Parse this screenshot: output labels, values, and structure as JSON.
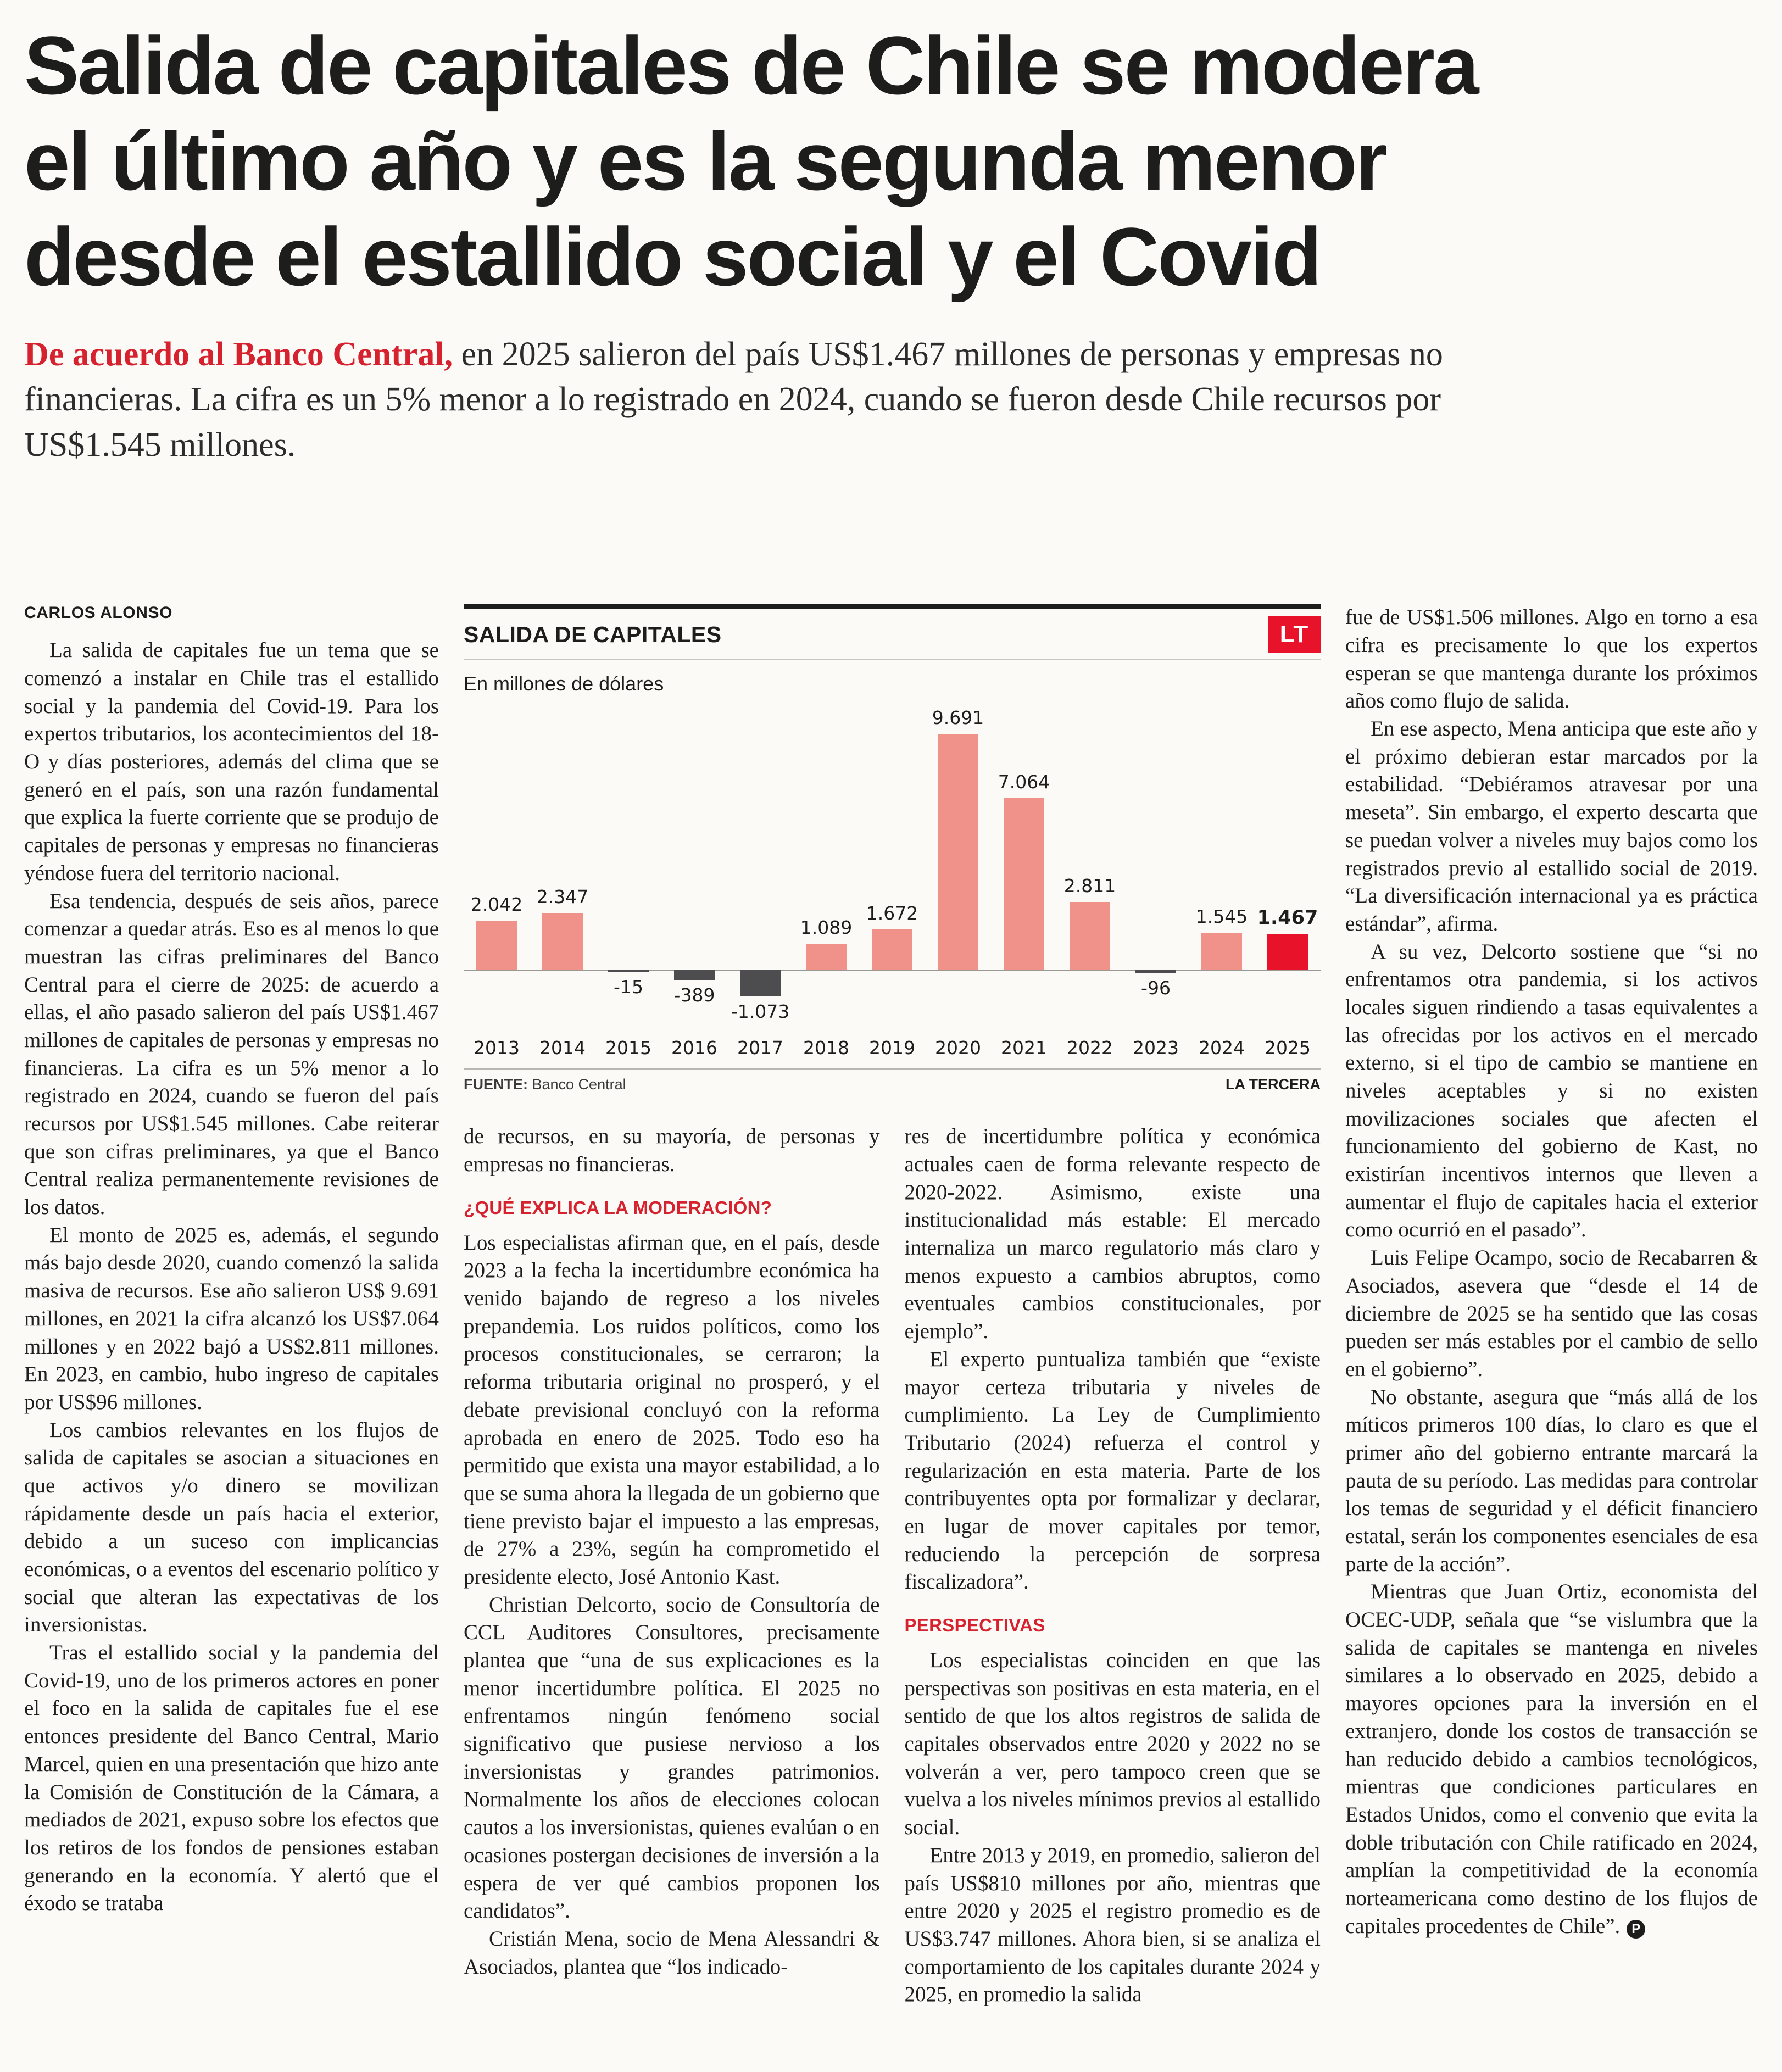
{
  "article": {
    "headline_lines": [
      "Salida de capitales de Chile se modera",
      "el último año y es la segunda menor",
      "desde el estallido social y el Covid"
    ],
    "lead": {
      "highlight": "De acuerdo al Banco Central,",
      "rest": " en 2025 salieron del país US$1.467 millones de personas y empresas no financieras. La cifra es un 5% menor a lo registrado en 2024, cuando se fueron desde Chile recursos por US$1.545 millones."
    },
    "byline": "CARLOS ALONSO",
    "col1": [
      "La salida de capitales fue un tema que se comenzó a instalar en Chile tras el estallido social y la pandemia del Covid-19. Para los expertos tributarios, los acontecimientos del 18-O y días posteriores, además del clima que se generó en el país, son una razón fundamental que explica la fuerte corriente que se produjo de capitales de personas y empresas no financieras yéndose fuera del territorio nacional.",
      "Esa tendencia, después de seis años, parece comenzar a quedar atrás. Eso es al menos lo que muestran las cifras preliminares del Banco Central para el cierre de 2025: de acuerdo a ellas, el año pasado salieron del país US$1.467 millones de capitales de personas y empresas no financieras. La cifra es un 5% menor a lo registrado en 2024, cuando se fueron del país recursos por US$1.545 millones. Cabe reiterar que son cifras preliminares, ya que el Banco Central realiza permanentemente revisiones de los datos.",
      "El monto de 2025 es, además, el segundo más bajo desde 2020, cuando comenzó la salida masiva de recursos. Ese año salieron US$ 9.691 millones, en 2021 la cifra alcanzó los US$7.064 millones y en 2022 bajó a US$2.811 millones. En 2023, en cambio, hubo ingreso de capitales por US$96 millones.",
      "Los cambios relevantes en los flujos de salida de capitales se asocian a situaciones en que activos y/o dinero se movilizan rápidamente desde un país hacia el exterior, debido a un suceso con implicancias económicas, o a eventos del escenario político y social que alteran las expectativas de los inversionistas.",
      "Tras el estallido social y la pandemia del Covid-19, uno de los primeros actores en poner el foco en la salida de capitales fue el ese entonces presidente del Banco Central, Mario Marcel, quien en una presentación que hizo ante la Comisión de Constitución de la Cámara, a mediados de 2021, expuso sobre los efectos que los retiros de los fondos de pensiones estaban generando en la economía. Y alertó que el éxodo se trataba"
    ],
    "col2_intro": [
      "de recursos, en su mayoría, de personas y empresas no financieras."
    ],
    "col2_heading": "¿QUÉ EXPLICA LA MODERACIÓN?",
    "col2_body": [
      "Los especialistas afirman que, en el país, desde 2023 a la fecha la incertidumbre económica ha venido bajando de regreso a los niveles prepandemia. Los ruidos políticos, como los procesos constitucionales, se cerraron; la reforma tributaria original no prosperó, y el debate previsional concluyó con la reforma aprobada en enero de 2025. Todo eso ha permitido que exista una mayor estabilidad, a lo que se suma ahora la llegada de un gobierno que tiene previsto bajar el impuesto a las empresas, de 27% a 23%, según ha comprometido el presidente electo, José Antonio Kast.",
      "Christian Delcorto, socio de Consultoría de CCL Auditores Consultores, precisamente plantea que “una de sus explicaciones es la menor incertidumbre política. El 2025 no enfrentamos ningún fenómeno social significativo que pusiese nervioso a los inversionistas y grandes patrimonios. Normalmente los años de elecciones colocan cautos a los inversionistas, quienes evalúan o en ocasiones postergan decisiones de inversión a la espera de ver qué cambios proponen los candidatos”.",
      "Cristián Mena, socio de Mena Alessandri & Asociados, plantea que “los indicado-"
    ],
    "col3_body_a": [
      "res de incertidumbre política y económica actuales caen de forma relevante respecto de 2020-2022. Asimismo, existe una institucionalidad más estable: El mercado internaliza un marco regulatorio más claro y menos expuesto a cambios abruptos, como eventuales cambios constitucionales, por ejemplo”.",
      "El experto puntualiza también que “existe mayor certeza tributaria y niveles de cumplimiento. La Ley de Cumplimiento Tributario (2024) refuerza el control y regularización en esta materia. Parte de los contribuyentes opta por formalizar y declarar, en lugar de mover capitales por temor, reduciendo la percepción de sorpresa fiscalizadora”."
    ],
    "col3_heading": "PERSPECTIVAS",
    "col3_body_b": [
      "Los especialistas coinciden en que las perspectivas son positivas en esta materia, en el sentido de que los altos registros de salida de capitales observados entre 2020 y 2022 no se volverán a ver, pero tampoco creen que se vuelva a los niveles mínimos previos al estallido social.",
      "Entre 2013 y 2019, en promedio, salieron del país US$810 millones por año, mientras que entre 2020 y 2025 el registro promedio es de US$3.747 millones. Ahora bien, si se analiza el comportamiento de los capitales durante 2024 y 2025, en promedio la salida"
    ],
    "col4_body": [
      "fue de US$1.506 millones. Algo en torno a esa cifra es precisamente lo que los expertos esperan se que mantenga durante los próximos años como flujo de salida.",
      "En ese aspecto, Mena anticipa que este año y el próximo debieran estar marcados por la estabilidad. “Debiéramos atravesar por una meseta”. Sin embargo, el experto descarta que se puedan volver a niveles muy bajos como los registrados previo al estallido social de 2019. “La diversificación internacional ya es práctica estándar”, afirma.",
      "A su vez, Delcorto sostiene que “si no enfrentamos otra pandemia, si los activos locales siguen rindiendo a tasas equivalentes a las ofrecidas por los activos en el mercado externo, si el tipo de cambio se mantiene en niveles aceptables y si no existen movilizaciones sociales que afecten el funcionamiento del gobierno de Kast, no existirían incentivos internos que lleven a aumentar el flujo de capitales hacia el exterior como ocurrió en el pasado”.",
      "Luis Felipe Ocampo, socio de Recabarren & Asociados, asevera que “desde el 14 de diciembre de 2025 se ha sentido que las cosas pueden ser más estables por el cambio de sello en el gobierno”.",
      "No obstante, asegura que “más allá de los míticos primeros 100 días, lo claro es que el primer año del gobierno entrante marcará la pauta de su período. Las medidas para controlar los temas de seguridad y el déficit financiero estatal, serán los componentes esenciales de esa parte de la acción”.",
      "Mientras que Juan Ortiz, economista del OCEC-UDP, señala que “se vislumbra que la salida de capitales se mantenga en niveles similares a lo observado en 2025, debido a mayores opciones para la inversión en el extranjero, donde los costos de transacción se han reducido debido a cambios tecnológicos, mientras que condiciones particulares en Estados Unidos, como el convenio que evita la doble tributación con Chile ratificado en 2024, amplían la competitividad de la economía norteamericana como destino de los flujos de capitales procedentes de Chile”."
    ],
    "end_mark": "P"
  },
  "chart": {
    "title": "SALIDA DE CAPITALES",
    "subtitle": "En millones de dólares",
    "logo_text": "LT",
    "source_label": "FUENTE:",
    "source_value": " Banco Central",
    "brand": "LA TERCERA"
  },
  "chart_data": {
    "type": "bar",
    "title": "SALIDA DE CAPITALES",
    "subtitle": "En millones de dólares",
    "unit": "millones de dólares (US$)",
    "categories": [
      "2013",
      "2014",
      "2015",
      "2016",
      "2017",
      "2018",
      "2019",
      "2020",
      "2021",
      "2022",
      "2023",
      "2024",
      "2025"
    ],
    "values": [
      2042,
      2347,
      -15,
      -389,
      -1073,
      1089,
      1672,
      9691,
      7064,
      2811,
      -96,
      1545,
      1467
    ],
    "value_labels": [
      "2.042",
      "2.347",
      "-15",
      "-389",
      "-1.073",
      "1.089",
      "1.672",
      "9.691",
      "7.064",
      "2.811",
      "-96",
      "1.545",
      "1.467"
    ],
    "highlight_index": 12,
    "ylim": [
      -1200,
      9691
    ],
    "grid": "zero baseline only",
    "legend_position": "none",
    "colors": {
      "positive": "#f0928a",
      "negative": "#4d4d4f",
      "highlight": "#e8132b"
    },
    "source": "FUENTE: Banco Central",
    "brand": "LA TERCERA"
  }
}
